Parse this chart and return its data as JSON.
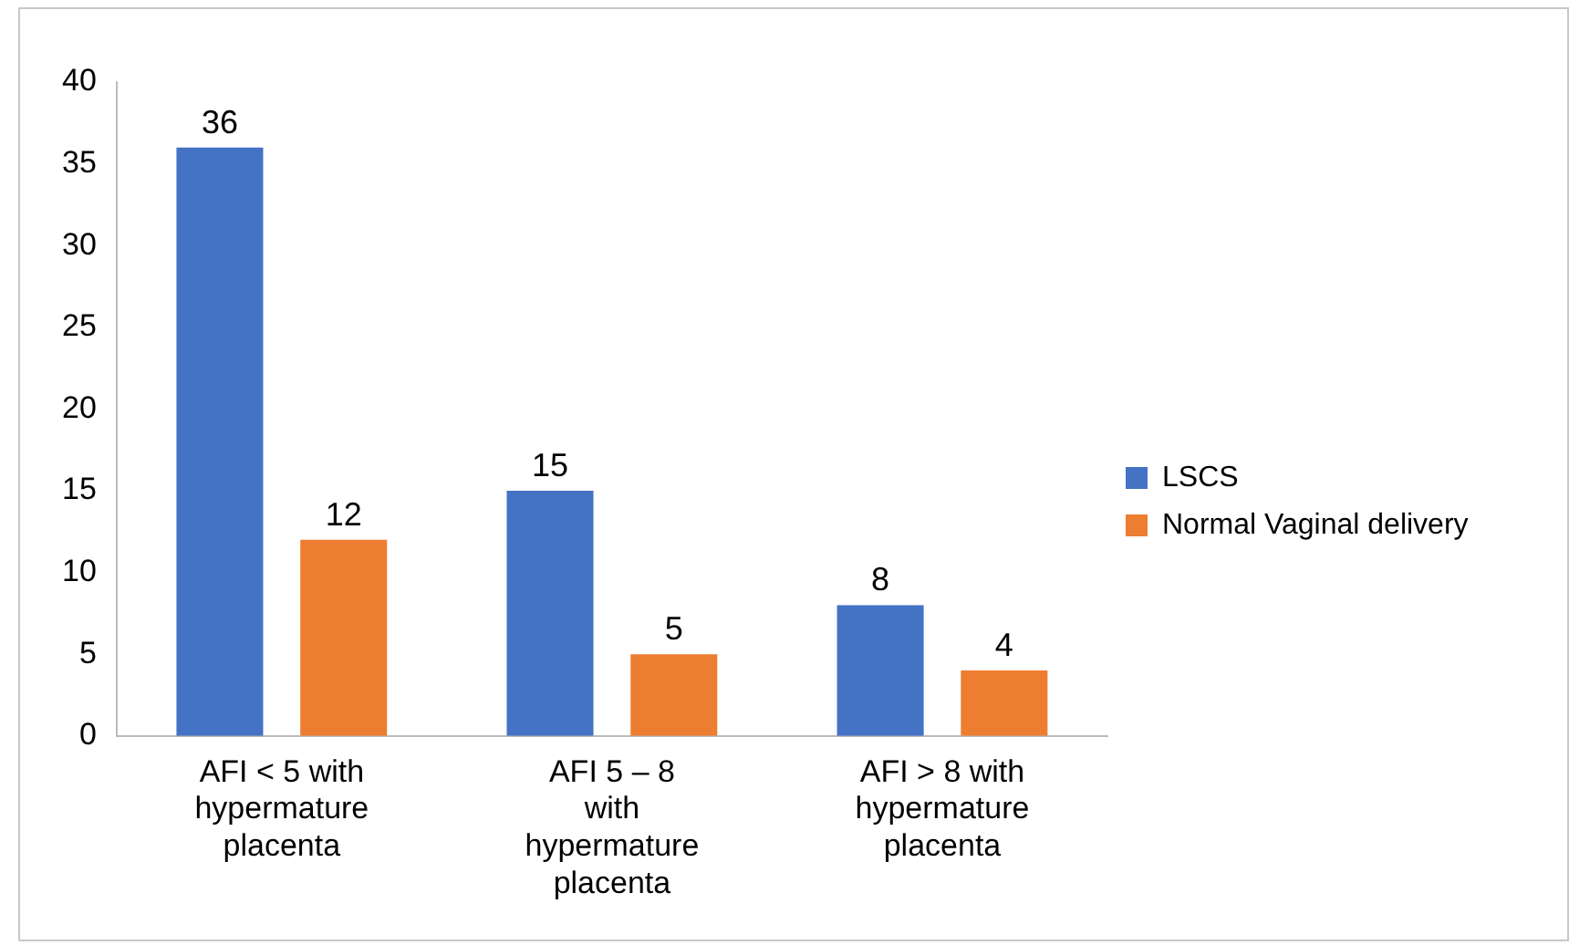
{
  "chart_data": {
    "type": "bar",
    "categories": [
      "AFI < 5 with hypermature placenta",
      "AFI 5 – 8 with hypermature placenta",
      "AFI > 8 with hypermature placenta"
    ],
    "series": [
      {
        "name": "LSCS",
        "color": "#4472c4",
        "values": [
          36,
          15,
          8
        ]
      },
      {
        "name": "Normal Vaginal delivery",
        "color": "#ed7d31",
        "values": [
          12,
          5,
          4
        ]
      }
    ],
    "ylim": [
      0,
      40
    ],
    "yticks": [
      0,
      5,
      10,
      15,
      20,
      25,
      30,
      35,
      40
    ],
    "grid": false,
    "legend": "right",
    "data_labels": true
  }
}
